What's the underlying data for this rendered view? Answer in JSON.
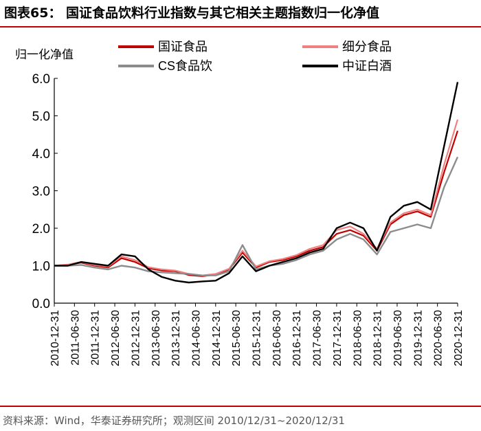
{
  "figure": {
    "title": "图表65：  国证食品饮料行业指数与其它相关主题指数归一化净值",
    "source": "资料来源：Wind，华泰证券研究所；观测区间 2010/12/31~2020/12/31"
  },
  "colors": {
    "rule": "#c00000",
    "axis": "#000000"
  },
  "chart_data": {
    "type": "line",
    "title": "",
    "ylabel": "归一化净值",
    "xlabel": "",
    "ylim": [
      0,
      6
    ],
    "yticks": [
      "0.0",
      "1.0",
      "2.0",
      "3.0",
      "4.0",
      "5.0",
      "6.0"
    ],
    "xticks": [
      "2010-12-31",
      "2011-06-30",
      "2011-12-31",
      "2012-06-30",
      "2012-12-31",
      "2013-06-30",
      "2013-12-31",
      "2014-06-30",
      "2014-12-31",
      "2015-06-30",
      "2015-12-31",
      "2016-06-30",
      "2016-12-31",
      "2017-06-30",
      "2017-12-31",
      "2018-06-30",
      "2018-12-31",
      "2019-06-30",
      "2019-12-31",
      "2020-06-30",
      "2020-12-31"
    ],
    "grid": false,
    "legend_position": "top",
    "series": [
      {
        "name": "国证食品",
        "color": "#c00000",
        "width": 2.2,
        "values": [
          1.0,
          1.02,
          1.08,
          1.0,
          0.95,
          1.2,
          1.1,
          0.93,
          0.87,
          0.85,
          0.75,
          0.72,
          0.76,
          0.9,
          1.35,
          0.95,
          1.1,
          1.15,
          1.25,
          1.4,
          1.5,
          1.85,
          1.95,
          1.8,
          1.4,
          2.1,
          2.35,
          2.45,
          2.3,
          3.5,
          4.6
        ]
      },
      {
        "name": "细分食品",
        "color": "#f08080",
        "width": 2.2,
        "values": [
          1.0,
          1.03,
          1.1,
          1.02,
          0.98,
          1.25,
          1.15,
          0.96,
          0.9,
          0.87,
          0.78,
          0.74,
          0.78,
          0.92,
          1.4,
          0.98,
          1.12,
          1.18,
          1.28,
          1.45,
          1.55,
          1.95,
          2.05,
          1.85,
          1.45,
          2.15,
          2.4,
          2.5,
          2.35,
          3.7,
          4.9
        ]
      },
      {
        "name": "CS食品饮",
        "color": "#8c8c8c",
        "width": 2.4,
        "values": [
          1.0,
          1.0,
          1.02,
          0.95,
          0.9,
          1.0,
          0.95,
          0.85,
          0.82,
          0.8,
          0.78,
          0.74,
          0.74,
          0.85,
          1.55,
          0.9,
          1.0,
          1.05,
          1.15,
          1.3,
          1.4,
          1.7,
          1.85,
          1.7,
          1.3,
          1.9,
          2.0,
          2.1,
          2.0,
          3.1,
          3.9
        ]
      },
      {
        "name": "中证白酒",
        "color": "#000000",
        "width": 2.4,
        "values": [
          1.0,
          1.0,
          1.1,
          1.05,
          1.0,
          1.3,
          1.25,
          0.9,
          0.7,
          0.6,
          0.55,
          0.58,
          0.6,
          0.8,
          1.25,
          0.85,
          1.0,
          1.1,
          1.2,
          1.35,
          1.45,
          2.0,
          2.15,
          2.0,
          1.4,
          2.3,
          2.6,
          2.7,
          2.5,
          4.2,
          5.9
        ]
      }
    ]
  }
}
